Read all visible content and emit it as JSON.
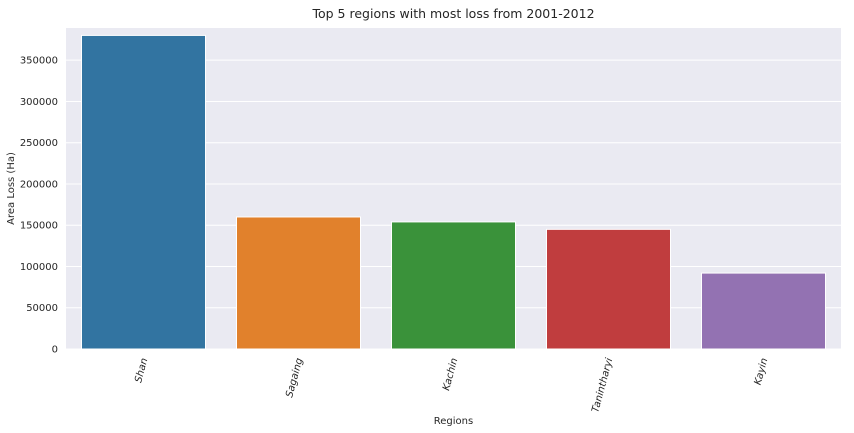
{
  "chart_data": {
    "type": "bar",
    "title": "Top 5 regions with most loss from 2001-2012",
    "xlabel": "Regions",
    "ylabel": "Area Loss (Ha)",
    "categories": [
      "Shan",
      "Sagaing",
      "Kachin",
      "Tanintharyi",
      "Kayin"
    ],
    "values": [
      380000,
      160000,
      154000,
      145000,
      92000
    ],
    "colors": [
      "#3274a1",
      "#e1812c",
      "#3a923a",
      "#c03d3e",
      "#9372b2"
    ],
    "ylim": [
      0,
      389000
    ],
    "yticks": [
      0,
      50000,
      100000,
      150000,
      200000,
      250000,
      300000,
      350000
    ],
    "ytick_labels": [
      "0",
      "50000",
      "100000",
      "150000",
      "200000",
      "250000",
      "300000",
      "350000"
    ],
    "grid": true,
    "background": "#eaeaf2"
  }
}
